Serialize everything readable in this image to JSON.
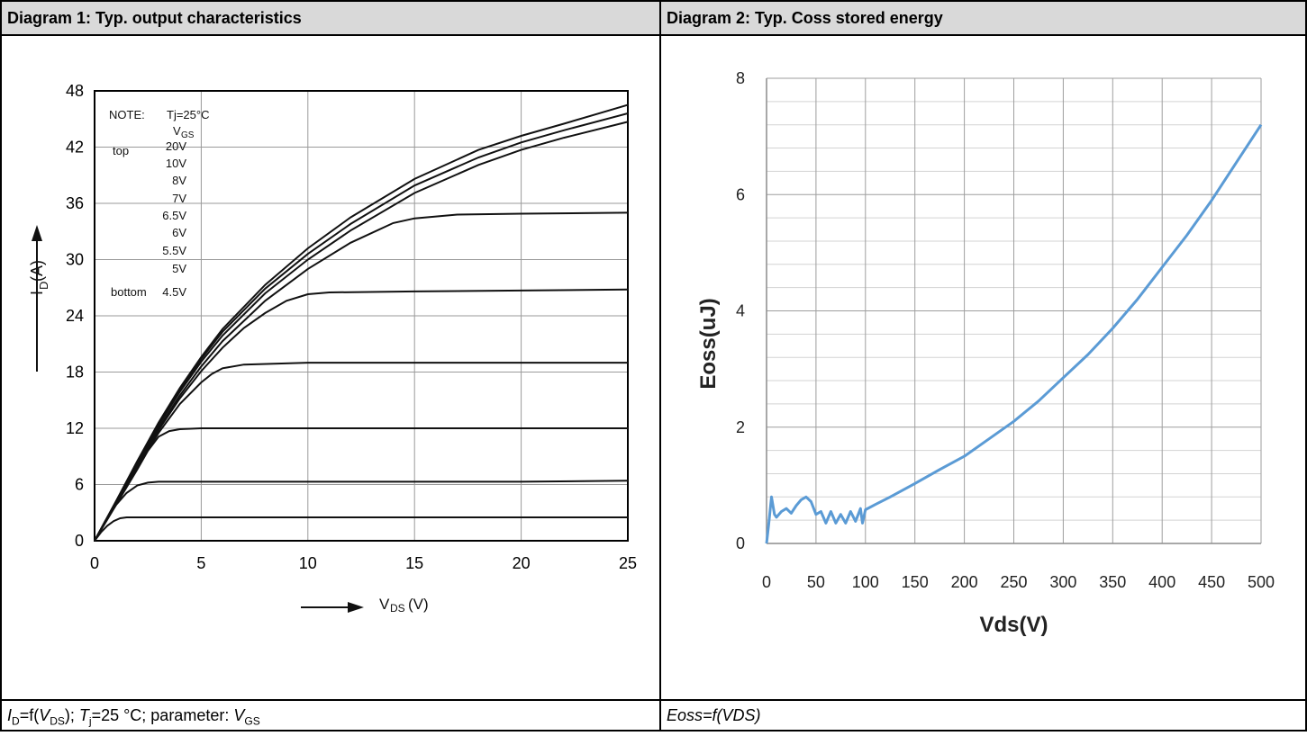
{
  "panels": [
    {
      "header": "Diagram 1: Typ. output characteristics"
    },
    {
      "header": "Diagram 2: Typ. Coss stored energy"
    }
  ],
  "captions": {
    "left": {
      "I": "I",
      "Isub": "D",
      "eq1": "=f(",
      "V": "V",
      "Vsub": "DS",
      "rest1": "); ",
      "T": "T",
      "Tsub": "j",
      "rest2": "=25 °C; parameter:  ",
      "V2": "V",
      "V2sub": "GS"
    },
    "right": "Eoss=f(VDS)"
  },
  "chart_data": [
    {
      "type": "line",
      "title": "",
      "xlabel": {
        "arrow": true,
        "V": "V",
        "sub": "DS",
        "unit": " (V)"
      },
      "ylabel": {
        "I": "I",
        "sub": "D",
        "unit": " (A)",
        "arrow": true
      },
      "xlim": [
        0,
        25
      ],
      "ylim": [
        0,
        48
      ],
      "x_ticks": [
        "0",
        "5",
        "10",
        "15",
        "20",
        "25"
      ],
      "y_ticks": [
        "0",
        "6",
        "12",
        "18",
        "24",
        "30",
        "36",
        "42",
        "48"
      ],
      "grid": true,
      "legend_text": {
        "note": "NOTE:",
        "cond": "Tj=25°C",
        "vgs_V": "V",
        "vgs_sub": "GS",
        "top": "top",
        "bottom": "bottom",
        "labels": [
          "20V",
          "10V",
          "8V",
          "7V",
          "6.5V",
          "6V",
          "5.5V",
          "5V",
          "4.5V"
        ]
      },
      "series": [
        {
          "x": [
            0,
            1,
            2,
            3,
            4,
            5,
            6,
            8,
            10,
            12,
            15,
            18,
            20,
            22,
            25
          ],
          "y": [
            0,
            4.2,
            8.5,
            12.6,
            16.3,
            19.6,
            22.6,
            27.3,
            31.2,
            34.5,
            38.6,
            41.7,
            43.2,
            44.5,
            46.5
          ]
        },
        {
          "x": [
            0,
            1,
            2,
            3,
            4,
            5,
            6,
            8,
            10,
            12,
            15,
            18,
            20,
            22,
            25
          ],
          "y": [
            0,
            4.2,
            8.4,
            12.4,
            16.1,
            19.4,
            22.3,
            26.9,
            30.6,
            33.8,
            37.9,
            40.9,
            42.5,
            43.8,
            45.6
          ]
        },
        {
          "x": [
            0,
            1,
            2,
            3,
            4,
            5,
            6,
            8,
            10,
            12,
            15,
            18,
            20,
            22,
            25
          ],
          "y": [
            0,
            4.1,
            8.3,
            12.3,
            15.9,
            19.1,
            21.9,
            26.4,
            30.0,
            33.1,
            37.1,
            40.1,
            41.7,
            43.0,
            44.7
          ]
        },
        {
          "x": [
            0,
            1,
            2,
            3,
            4,
            5,
            6,
            8,
            10,
            12,
            14,
            15,
            17,
            20,
            25
          ],
          "y": [
            0,
            4.0,
            8.2,
            12.0,
            15.5,
            18.6,
            21.3,
            25.6,
            29.0,
            31.8,
            33.9,
            34.4,
            34.8,
            34.9,
            35.0
          ]
        },
        {
          "x": [
            0,
            1,
            2,
            3,
            4,
            5,
            6,
            7,
            8,
            9,
            10,
            11,
            15,
            20,
            25
          ],
          "y": [
            0,
            4.0,
            8.1,
            11.8,
            15.2,
            18.1,
            20.6,
            22.7,
            24.3,
            25.6,
            26.3,
            26.5,
            26.6,
            26.7,
            26.8
          ]
        },
        {
          "x": [
            0,
            1,
            2,
            3,
            4,
            5,
            5.5,
            6,
            7,
            10,
            15,
            20,
            25
          ],
          "y": [
            0,
            3.9,
            7.9,
            11.5,
            14.6,
            16.9,
            17.8,
            18.4,
            18.8,
            19.0,
            19.0,
            19.0,
            19.0
          ]
        },
        {
          "x": [
            0,
            1,
            2,
            2.5,
            3,
            3.5,
            4,
            5,
            10,
            15,
            20,
            25
          ],
          "y": [
            0,
            3.8,
            7.6,
            9.6,
            11.1,
            11.7,
            11.9,
            12.0,
            12.0,
            12.0,
            12.0,
            12.0
          ]
        },
        {
          "x": [
            0,
            0.5,
            1,
            1.5,
            2,
            2.5,
            3,
            5,
            10,
            15,
            20,
            25
          ],
          "y": [
            0,
            2.1,
            3.8,
            5.1,
            5.9,
            6.2,
            6.3,
            6.3,
            6.3,
            6.3,
            6.3,
            6.4
          ]
        },
        {
          "x": [
            0,
            0.3,
            0.6,
            0.9,
            1.2,
            1.5,
            3,
            10,
            15,
            20,
            25
          ],
          "y": [
            0,
            0.9,
            1.6,
            2.1,
            2.4,
            2.5,
            2.5,
            2.5,
            2.5,
            2.5,
            2.5
          ]
        }
      ]
    },
    {
      "type": "line",
      "title": "",
      "xlabel": "Vds(V)",
      "ylabel": "Eoss(uJ)",
      "xlim": [
        0,
        500
      ],
      "ylim": [
        0,
        8
      ],
      "x_ticks": [
        "0",
        "50",
        "100",
        "150",
        "200",
        "250",
        "300",
        "350",
        "400",
        "450",
        "500"
      ],
      "y_ticks": [
        "0",
        "2",
        "4",
        "6",
        "8"
      ],
      "grid": true,
      "color": "#5b9bd5",
      "series": [
        {
          "x": [
            0,
            2,
            5,
            8,
            10,
            15,
            20,
            25,
            30,
            35,
            40,
            45,
            50,
            55,
            60,
            65,
            70,
            75,
            80,
            85,
            90,
            95,
            97,
            100,
            110,
            125,
            150,
            175,
            200,
            225,
            250,
            275,
            300,
            325,
            350,
            375,
            400,
            425,
            450,
            475,
            500
          ],
          "y": [
            0,
            0.3,
            0.8,
            0.5,
            0.45,
            0.55,
            0.6,
            0.52,
            0.65,
            0.75,
            0.8,
            0.72,
            0.5,
            0.55,
            0.35,
            0.55,
            0.35,
            0.5,
            0.35,
            0.55,
            0.38,
            0.6,
            0.35,
            0.58,
            0.67,
            0.8,
            1.03,
            1.27,
            1.5,
            1.8,
            2.1,
            2.45,
            2.85,
            3.25,
            3.7,
            4.2,
            4.75,
            5.3,
            5.9,
            6.55,
            7.2
          ]
        }
      ]
    }
  ]
}
